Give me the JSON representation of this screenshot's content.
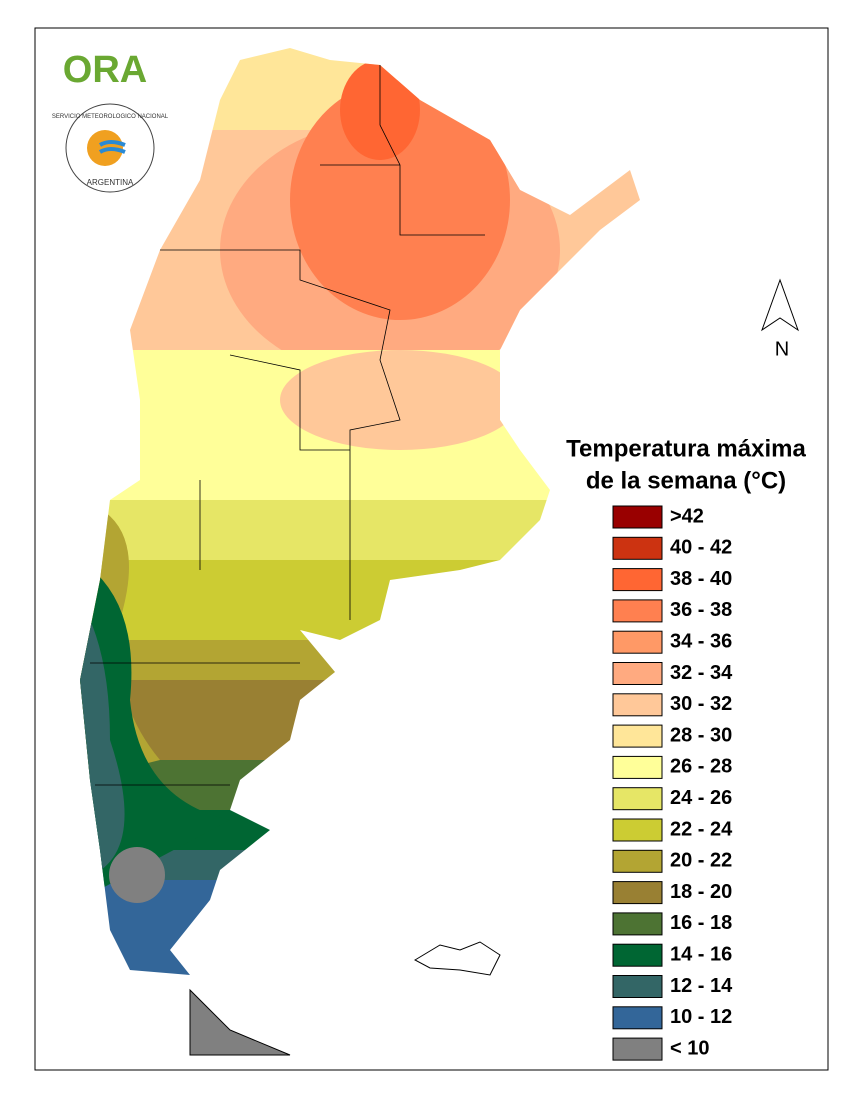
{
  "logo": {
    "name": "ORA",
    "agency": "SERVICIO METEOROLOGICO NACIONAL",
    "country": "ARGENTINA"
  },
  "north_arrow": "N",
  "legend": {
    "title": [
      "Temperatura máxima",
      "de la semana (°C)"
    ],
    "items": [
      {
        "label": ">42",
        "color": "#990000"
      },
      {
        "label": "40 - 42",
        "color": "#cc3311"
      },
      {
        "label": "38 - 40",
        "color": "#ff6633"
      },
      {
        "label": "36 - 38",
        "color": "#ff8050"
      },
      {
        "label": "34 - 36",
        "color": "#ff9966"
      },
      {
        "label": "32 - 34",
        "color": "#ffaa80"
      },
      {
        "label": "30 - 32",
        "color": "#ffc899"
      },
      {
        "label": "28 - 30",
        "color": "#ffe699"
      },
      {
        "label": "26 - 28",
        "color": "#ffff99"
      },
      {
        "label": "24 - 26",
        "color": "#e6e666"
      },
      {
        "label": "22 - 24",
        "color": "#cccc33"
      },
      {
        "label": "20 - 22",
        "color": "#b3a533"
      },
      {
        "label": "18 - 20",
        "color": "#998033"
      },
      {
        "label": "16 - 18",
        "color": "#4d7333"
      },
      {
        "label": "14 - 16",
        "color": "#006633"
      },
      {
        "label": "12 - 14",
        "color": "#336666"
      },
      {
        "label": "10 - 12",
        "color": "#336699"
      },
      {
        "label": "< 10",
        "color": "#808080"
      }
    ]
  }
}
